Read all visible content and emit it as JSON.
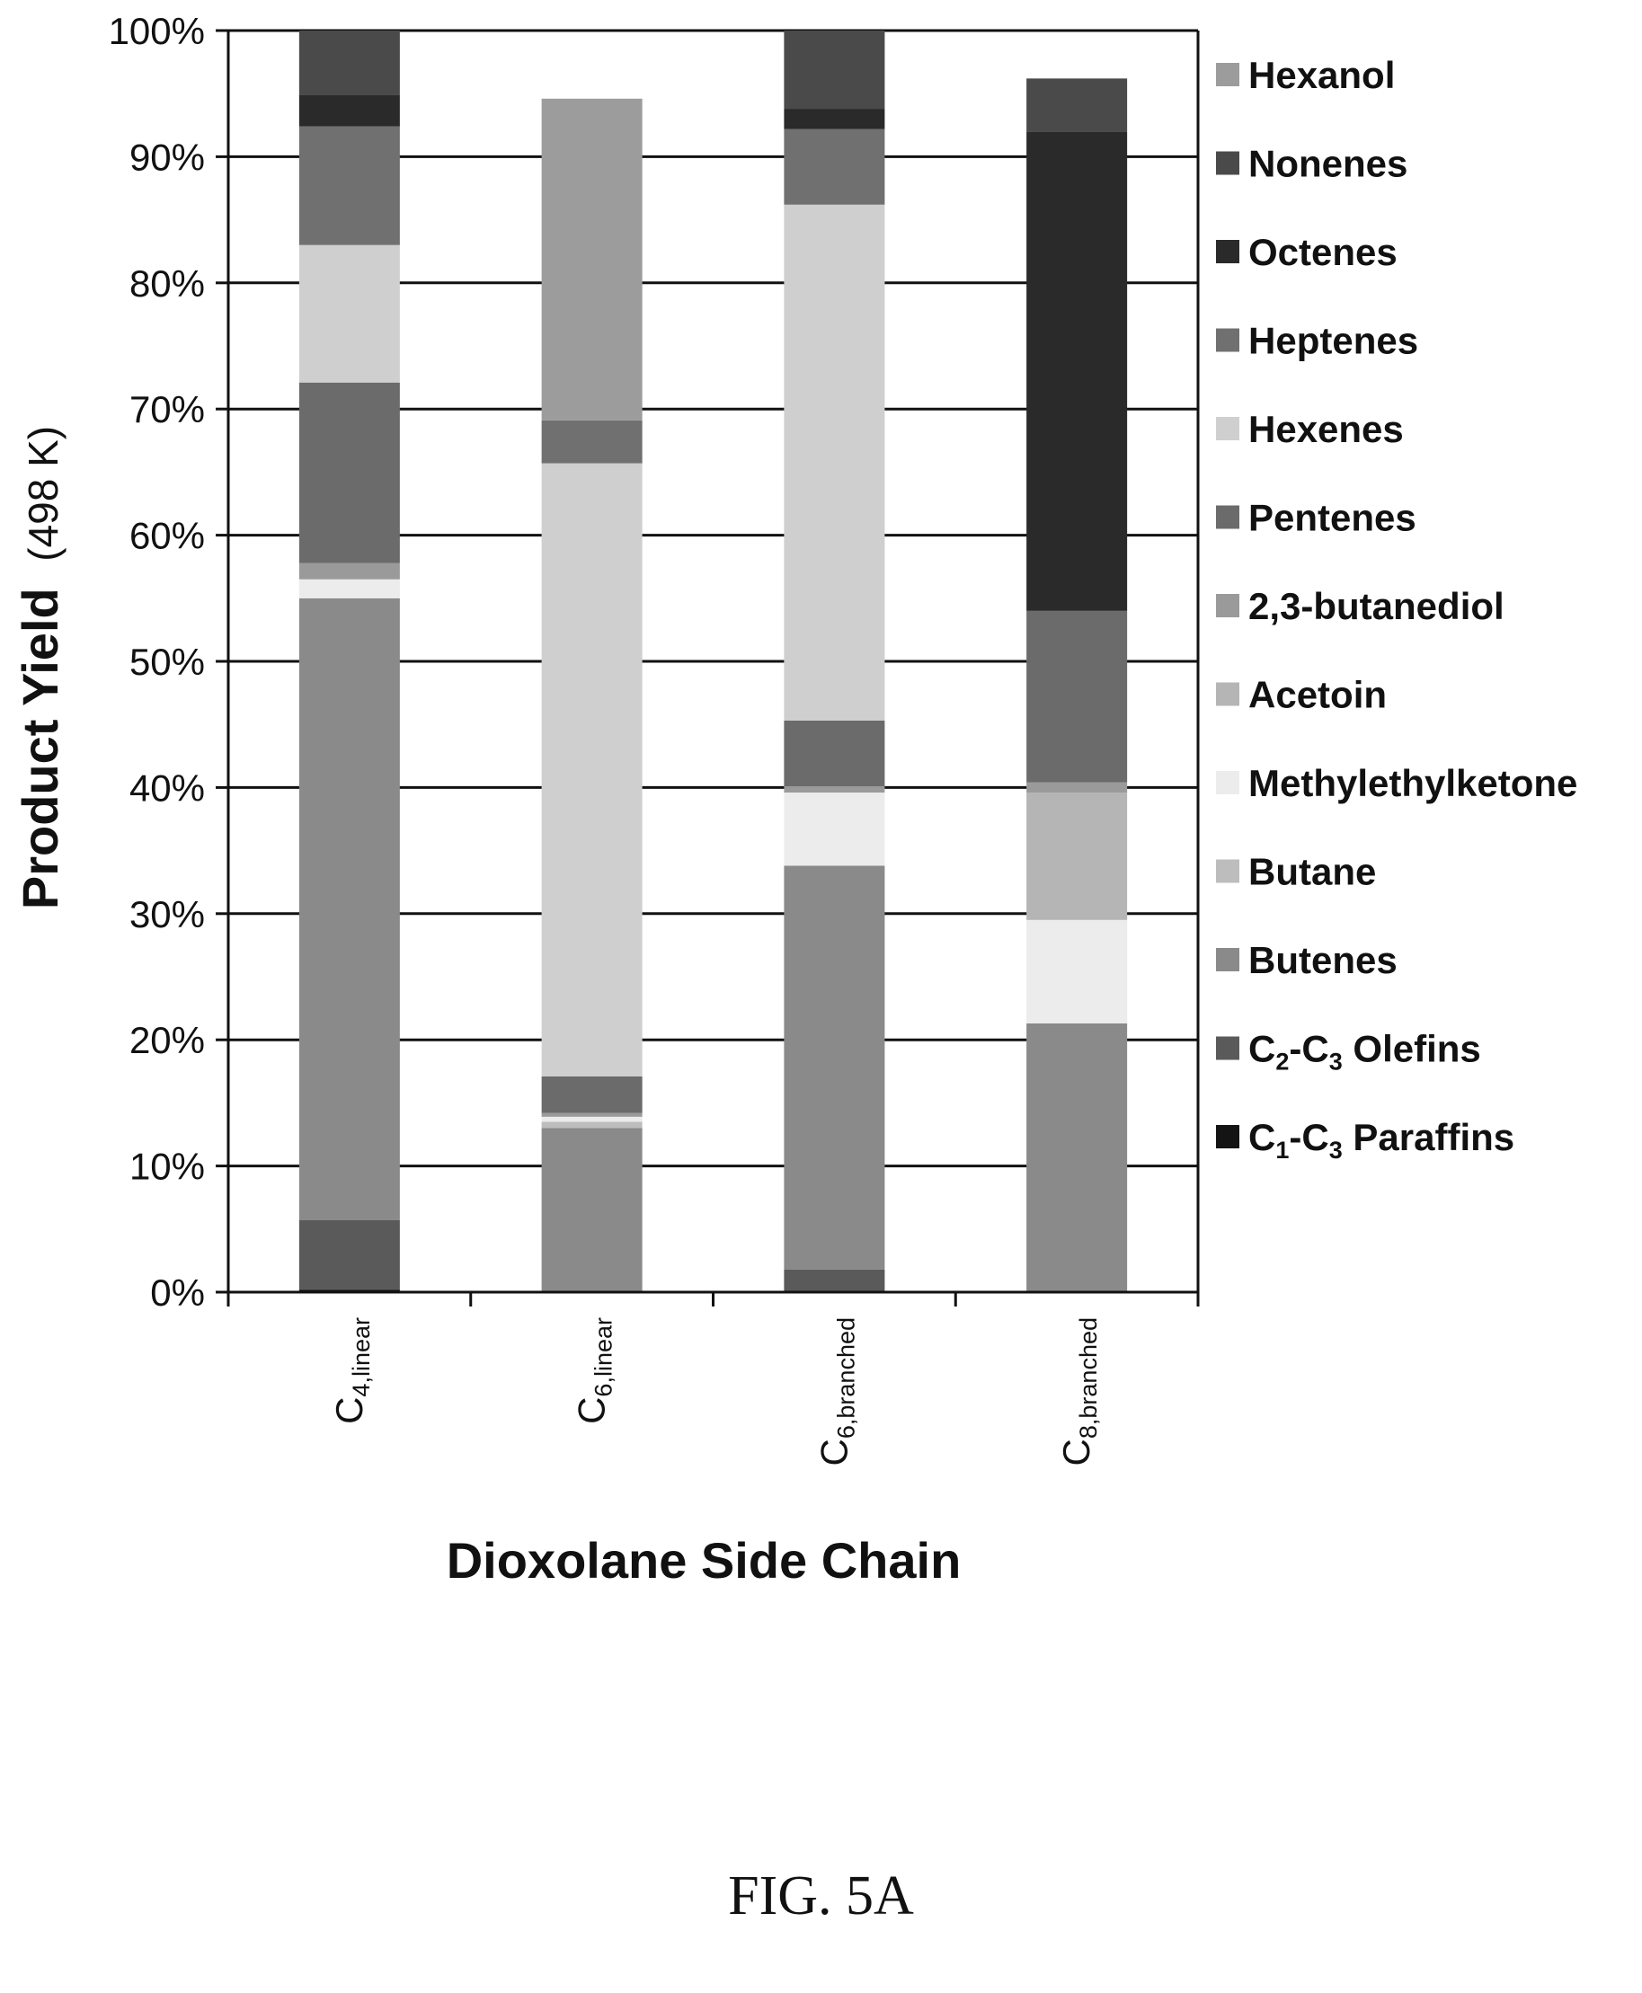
{
  "chart_data": {
    "type": "bar",
    "stacked": true,
    "categories": [
      {
        "main": "C",
        "sub": "4,linear"
      },
      {
        "main": "C",
        "sub": "6,linear"
      },
      {
        "main": "C",
        "sub": "6,branched"
      },
      {
        "main": "C",
        "sub": "8,branched"
      }
    ],
    "xlabel": "Dioxolane Side Chain",
    "ylabel": {
      "main": "Product Yield",
      "unit": "(498 K)"
    },
    "ylim": [
      0,
      100
    ],
    "yticks": [
      "0%",
      "10%",
      "20%",
      "30%",
      "40%",
      "50%",
      "60%",
      "70%",
      "80%",
      "90%",
      "100%"
    ],
    "grid": true,
    "legend_position": "right",
    "series": [
      {
        "name": "C1-C3 Paraffins",
        "label_parts": [
          [
            "C",
            ""
          ],
          [
            "1",
            "sub"
          ],
          [
            "-C",
            ""
          ],
          [
            "3",
            "sub"
          ],
          [
            " Paraffins",
            ""
          ]
        ],
        "color": "#141414",
        "values": [
          0.2,
          0.0,
          0.0,
          0.0
        ]
      },
      {
        "name": "C2-C3 Olefins",
        "label_parts": [
          [
            "C",
            ""
          ],
          [
            "2",
            "sub"
          ],
          [
            "-C",
            ""
          ],
          [
            "3",
            "sub"
          ],
          [
            " Olefins",
            ""
          ]
        ],
        "color": "#5a5a5a",
        "values": [
          5.5,
          0.0,
          1.8,
          0.0
        ]
      },
      {
        "name": "Butenes",
        "label_parts": [
          [
            "Butenes",
            ""
          ]
        ],
        "color": "#8a8a8a",
        "values": [
          49.3,
          13.0,
          32.0,
          21.3
        ]
      },
      {
        "name": "Butane",
        "label_parts": [
          [
            "Butane",
            ""
          ]
        ],
        "color": "#bdbdbd",
        "values": [
          0.0,
          0.5,
          0.0,
          0.0
        ]
      },
      {
        "name": "Methylethylketone",
        "label_parts": [
          [
            "Methylethylketone",
            ""
          ]
        ],
        "color": "#ececec",
        "values": [
          1.5,
          0.4,
          5.8,
          8.2
        ]
      },
      {
        "name": "Acetoin",
        "label_parts": [
          [
            "Acetoin",
            ""
          ]
        ],
        "color": "#b5b5b5",
        "values": [
          0.0,
          0.0,
          0.0,
          10.1
        ]
      },
      {
        "name": "2,3-butanediol",
        "label_parts": [
          [
            "2,3-butanediol",
            ""
          ]
        ],
        "color": "#9a9a9a",
        "values": [
          1.3,
          0.3,
          0.5,
          0.8
        ]
      },
      {
        "name": "Pentenes",
        "label_parts": [
          [
            "Pentenes",
            ""
          ]
        ],
        "color": "#6b6b6b",
        "values": [
          14.3,
          2.9,
          5.2,
          13.6
        ]
      },
      {
        "name": "Hexenes",
        "label_parts": [
          [
            "Hexenes",
            ""
          ]
        ],
        "color": "#cfcfcf",
        "values": [
          10.9,
          48.6,
          40.9,
          0.0
        ]
      },
      {
        "name": "Heptenes",
        "label_parts": [
          [
            "Heptenes",
            ""
          ]
        ],
        "color": "#707070",
        "values": [
          9.4,
          3.4,
          6.0,
          0.0
        ]
      },
      {
        "name": "Octenes",
        "label_parts": [
          [
            "Octenes",
            ""
          ]
        ],
        "color": "#2a2a2a",
        "values": [
          2.5,
          0.0,
          1.6,
          38.0
        ]
      },
      {
        "name": "Nonenes",
        "label_parts": [
          [
            "Nonenes",
            ""
          ]
        ],
        "color": "#4a4a4a",
        "values": [
          5.1,
          0.0,
          6.2,
          4.2
        ]
      },
      {
        "name": "Hexanol",
        "label_parts": [
          [
            "Hexanol",
            ""
          ]
        ],
        "color": "#9c9c9c",
        "values": [
          0.0,
          25.5,
          0.0,
          0.0
        ]
      }
    ]
  },
  "figure": {
    "caption": "FIG. 5A"
  }
}
